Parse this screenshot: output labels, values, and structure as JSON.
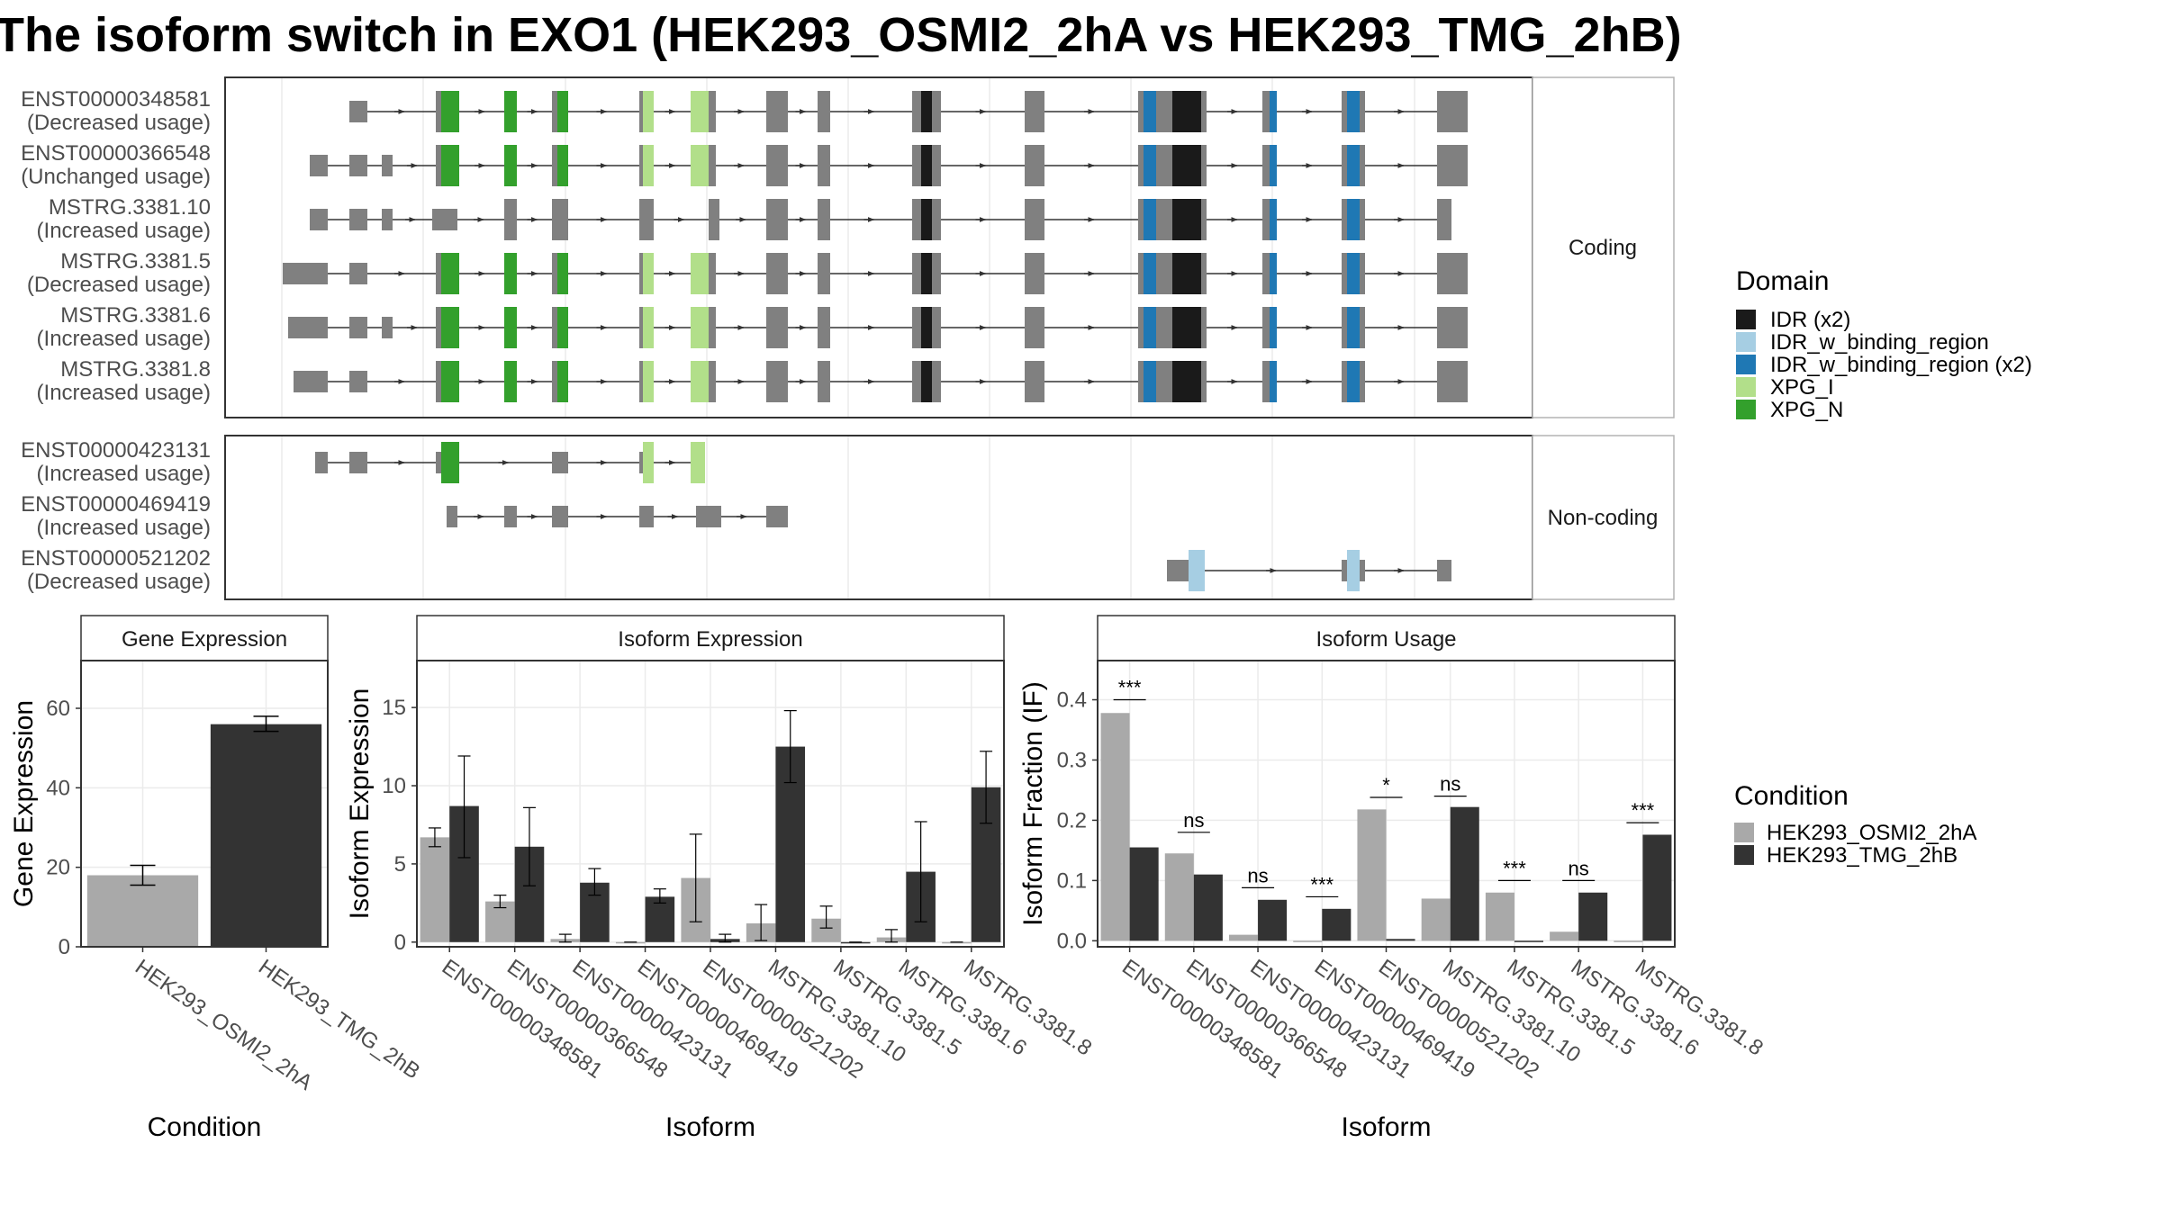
{
  "title": "The isoform switch in EXO1 (HEK293_OSMI2_2hA vs HEK293_TMG_2hB)",
  "colors": {
    "IDR (x2)": "#1a1a1a",
    "IDR_w_binding_region": "#a6cee3",
    "IDR_w_binding_region (x2)": "#1f78b4",
    "XPG_I": "#b2df8a",
    "XPG_N": "#33a02c",
    "exon": "#808080",
    "cond_a": "#a9a9a9",
    "cond_b": "#333333"
  },
  "transcripts": {
    "coding_label": "Coding",
    "noncoding_label": "Non-coding",
    "coding": [
      {
        "id": "ENST00000348581",
        "usage": "(Decreased usage)"
      },
      {
        "id": "ENST00000366548",
        "usage": "(Unchanged usage)"
      },
      {
        "id": "MSTRG.3381.10",
        "usage": "(Increased usage)"
      },
      {
        "id": "MSTRG.3381.5",
        "usage": "(Decreased usage)"
      },
      {
        "id": "MSTRG.3381.6",
        "usage": "(Increased usage)"
      },
      {
        "id": "MSTRG.3381.8",
        "usage": "(Increased usage)"
      }
    ],
    "noncoding": [
      {
        "id": "ENST00000423131",
        "usage": "(Increased usage)"
      },
      {
        "id": "ENST00000469419",
        "usage": "(Increased usage)"
      },
      {
        "id": "ENST00000521202",
        "usage": "(Decreased usage)"
      }
    ]
  },
  "legend_domain": {
    "title": "Domain",
    "items": [
      "IDR (x2)",
      "IDR_w_binding_region",
      "IDR_w_binding_region (x2)",
      "XPG_I",
      "XPG_N"
    ]
  },
  "legend_condition": {
    "title": "Condition",
    "items": [
      "HEK293_OSMI2_2hA",
      "HEK293_TMG_2hB"
    ]
  },
  "chart_data": [
    {
      "type": "bar",
      "title": "Gene Expression",
      "xlabel": "Condition",
      "ylabel": "Gene Expression",
      "ylim": [
        0,
        72
      ],
      "yticks": [
        0,
        20,
        40,
        60
      ],
      "categories": [
        "HEK293_OSMI2_2hA",
        "HEK293_TMG_2hB"
      ],
      "values": [
        18,
        56
      ],
      "errors": [
        [
          15.5,
          20.5
        ],
        [
          54.2,
          58
        ]
      ]
    },
    {
      "type": "bar",
      "title": "Isoform Expression",
      "xlabel": "Isoform",
      "ylabel": "Isoform Expression",
      "ylim": [
        -0.3,
        18
      ],
      "yticks": [
        0,
        5,
        10,
        15
      ],
      "categories": [
        "ENST00000348581",
        "ENST00000366548",
        "ENST00000423131",
        "ENST00000469419",
        "ENST00000521202",
        "MSTRG.3381.10",
        "MSTRG.3381.5",
        "MSTRG.3381.6",
        "MSTRG.3381.8"
      ],
      "series": [
        {
          "name": "HEK293_OSMI2_2hA",
          "values": [
            6.7,
            2.6,
            0.2,
            0.0,
            4.1,
            1.2,
            1.5,
            0.3,
            0.0
          ],
          "errors": [
            [
              6.1,
              7.3
            ],
            [
              2.2,
              3.0
            ],
            [
              0.0,
              0.5
            ],
            [
              0.0,
              0.0
            ],
            [
              1.3,
              6.9
            ],
            [
              0.1,
              2.4
            ],
            [
              0.9,
              2.3
            ],
            [
              0.0,
              0.8
            ],
            [
              0.0,
              0.0
            ]
          ]
        },
        {
          "name": "HEK293_TMG_2hB",
          "values": [
            8.7,
            6.1,
            3.8,
            2.9,
            0.2,
            12.5,
            0.0,
            4.5,
            9.9
          ],
          "errors": [
            [
              5.4,
              11.9
            ],
            [
              3.6,
              8.6
            ],
            [
              3.0,
              4.7
            ],
            [
              2.5,
              3.4
            ],
            [
              0.0,
              0.5
            ],
            [
              10.2,
              14.8
            ],
            [
              0.0,
              0.0
            ],
            [
              1.3,
              7.7
            ],
            [
              7.6,
              12.2
            ]
          ]
        }
      ]
    },
    {
      "type": "bar",
      "title": "Isoform Usage",
      "xlabel": "Isoform",
      "ylabel": "Isoform Fraction (IF)",
      "ylim": [
        -0.01,
        0.465
      ],
      "yticks": [
        0.0,
        0.1,
        0.2,
        0.3,
        0.4
      ],
      "categories": [
        "ENST00000348581",
        "ENST00000366548",
        "ENST00000423131",
        "ENST00000469419",
        "ENST00000521202",
        "MSTRG.3381.10",
        "MSTRG.3381.5",
        "MSTRG.3381.6",
        "MSTRG.3381.8"
      ],
      "series": [
        {
          "name": "HEK293_OSMI2_2hA",
          "values": [
            0.378,
            0.145,
            0.01,
            0.0,
            0.218,
            0.07,
            0.08,
            0.015,
            0.0
          ]
        },
        {
          "name": "HEK293_TMG_2hB",
          "values": [
            0.155,
            0.11,
            0.068,
            0.053,
            0.003,
            0.222,
            0.0,
            0.08,
            0.176
          ]
        }
      ],
      "significance": [
        "***",
        "ns",
        "ns",
        "***",
        "*",
        "ns",
        "***",
        "ns",
        "***"
      ],
      "sig_heights": [
        0.4,
        0.18,
        0.088,
        0.073,
        0.238,
        0.24,
        0.1,
        0.1,
        0.196
      ]
    }
  ]
}
